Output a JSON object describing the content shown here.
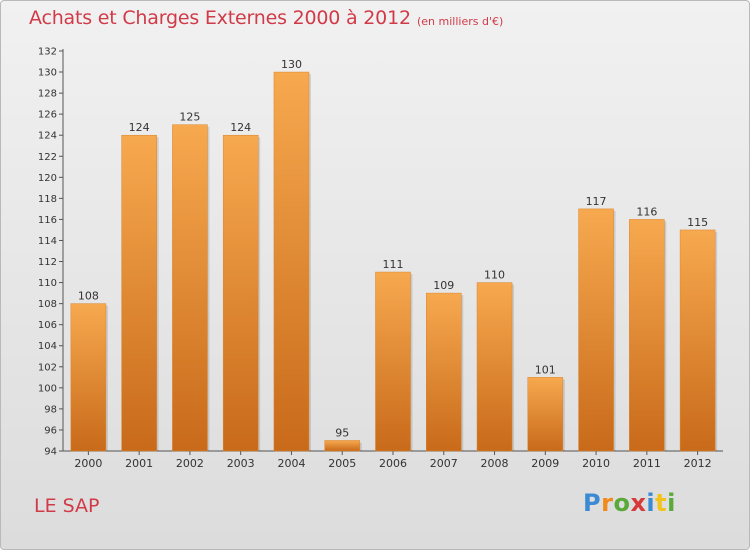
{
  "chart_data": {
    "type": "bar",
    "title": "Achats et Charges Externes 2000 à 2012",
    "subtitle": "(en milliers d'€)",
    "categories": [
      "2000",
      "2001",
      "2002",
      "2003",
      "2004",
      "2005",
      "2006",
      "2007",
      "2008",
      "2009",
      "2010",
      "2011",
      "2012"
    ],
    "values": [
      108,
      124,
      125,
      124,
      130,
      95,
      111,
      109,
      110,
      101,
      117,
      116,
      115
    ],
    "ylim": [
      94,
      132
    ],
    "yticks": [
      94,
      96,
      98,
      100,
      102,
      104,
      106,
      108,
      110,
      112,
      114,
      116,
      118,
      120,
      122,
      124,
      126,
      128,
      130,
      132
    ],
    "xlabel": "",
    "ylabel": "",
    "grid": false,
    "colors": {
      "bar_light": "#f7a94f",
      "bar_dark": "#c86a1a",
      "text_accent": "#d13a48"
    }
  },
  "footer": {
    "town": "LE SAP",
    "logo_letters": [
      "P",
      "r",
      "o",
      "x",
      "i",
      "t",
      "i"
    ],
    "logo_colors": [
      "#3c8ad4",
      "#f08a1c",
      "#5aaa3a",
      "#d63a3a",
      "#3c8ad4",
      "#f2c31a",
      "#5aaa3a"
    ]
  }
}
